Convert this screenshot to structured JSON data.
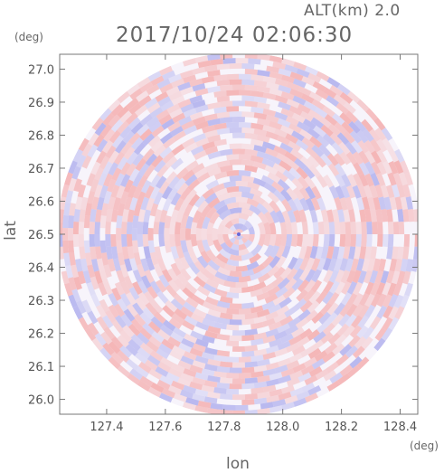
{
  "header": {
    "altitude": "ALT(km) 2.0",
    "timestamp": "2017/10/24 02:06:30"
  },
  "colors": {
    "positive": "#f4a6a6",
    "negative": "#a8a8ec",
    "frame": "#777777"
  },
  "chart_data": {
    "type": "heatmap",
    "title": "2017/10/24 02:06:30",
    "subtitle": "ALT(km) 2.0",
    "xlabel": "lon",
    "ylabel": "lat",
    "x_unit": "(deg)",
    "y_unit": "(deg)",
    "xlim": [
      127.24,
      128.46
    ],
    "ylim": [
      25.955,
      27.045
    ],
    "xticks": [
      "127.4",
      "127.6",
      "127.8",
      "128.0",
      "128.2",
      "128.4"
    ],
    "yticks": [
      "26.0",
      "26.1",
      "26.2",
      "26.3",
      "26.4",
      "26.5",
      "26.6",
      "26.7",
      "26.8",
      "26.9",
      "27.0"
    ],
    "center": {
      "lon": 127.85,
      "lat": 26.5
    },
    "radar_radius_deg_lat": 0.55
  }
}
